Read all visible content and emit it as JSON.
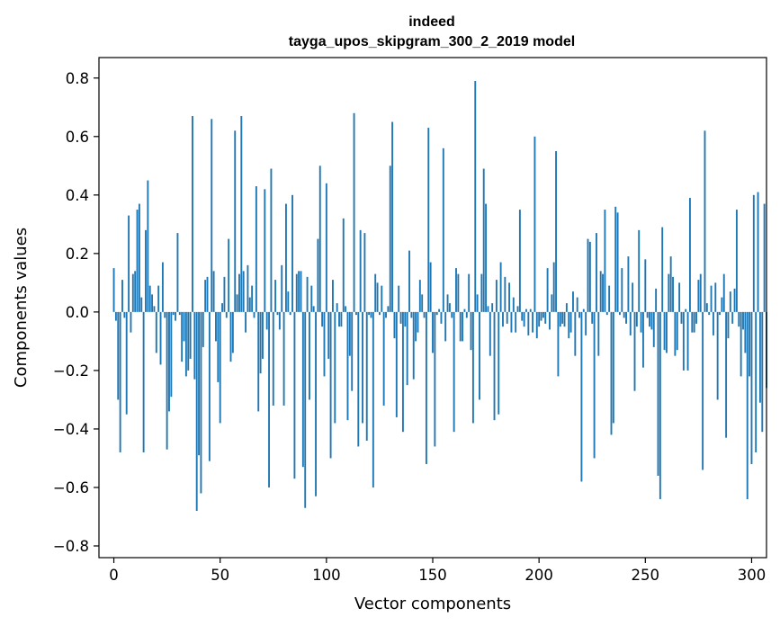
{
  "chart_data": {
    "type": "bar",
    "title": "indeed",
    "subtitle": "tayga_upos_skipgram_300_2_2019 model",
    "xlabel": "Vector components",
    "ylabel": "Components values",
    "xlim": [
      -7,
      307
    ],
    "ylim": [
      -0.84,
      0.87
    ],
    "x_ticks": [
      0,
      50,
      100,
      150,
      200,
      250,
      300
    ],
    "x_tick_labels": [
      "0",
      "50",
      "100",
      "150",
      "200",
      "250",
      "300"
    ],
    "y_ticks": [
      -0.8,
      -0.6,
      -0.4,
      -0.2,
      0.0,
      0.2,
      0.4,
      0.6,
      0.8
    ],
    "y_tick_labels": [
      "−0.8",
      "−0.6",
      "−0.4",
      "−0.2",
      "0.0",
      "0.2",
      "0.4",
      "0.6",
      "0.8"
    ],
    "bar_color": "#1f77b4",
    "grid": false,
    "values": [
      0.15,
      -0.03,
      -0.3,
      -0.48,
      0.11,
      -0.02,
      -0.35,
      0.33,
      -0.07,
      0.13,
      0.14,
      0.35,
      0.37,
      0.05,
      -0.48,
      0.28,
      0.45,
      0.09,
      0.06,
      0.02,
      -0.14,
      0.09,
      -0.18,
      0.17,
      -0.02,
      -0.47,
      -0.34,
      -0.29,
      -0.01,
      -0.03,
      0.27,
      -0.01,
      -0.17,
      -0.1,
      -0.22,
      -0.2,
      -0.16,
      0.67,
      -0.23,
      -0.68,
      -0.49,
      -0.62,
      -0.12,
      0.11,
      0.12,
      -0.51,
      0.66,
      0.14,
      -0.1,
      -0.24,
      -0.38,
      0.03,
      0.12,
      -0.02,
      0.25,
      -0.17,
      -0.14,
      0.62,
      0.06,
      0.13,
      0.67,
      0.14,
      -0.07,
      0.16,
      0.05,
      0.09,
      -0.02,
      0.43,
      -0.34,
      -0.21,
      -0.16,
      0.42,
      -0.06,
      -0.6,
      0.49,
      -0.32,
      0.11,
      -0.01,
      -0.06,
      0.16,
      -0.32,
      0.37,
      0.07,
      -0.01,
      0.4,
      -0.57,
      0.13,
      0.14,
      0.14,
      -0.53,
      -0.67,
      0.12,
      -0.3,
      0.09,
      0.02,
      -0.63,
      0.25,
      0.5,
      -0.05,
      -0.22,
      0.44,
      -0.16,
      -0.5,
      0.11,
      -0.38,
      0.03,
      -0.05,
      -0.05,
      0.32,
      0.02,
      -0.37,
      -0.15,
      -0.27,
      0.68,
      -0.01,
      -0.46,
      0.28,
      -0.38,
      0.27,
      -0.44,
      -0.01,
      -0.02,
      -0.6,
      0.13,
      0.1,
      -0.01,
      0.09,
      -0.32,
      -0.02,
      0.02,
      0.5,
      0.65,
      -0.09,
      -0.36,
      0.09,
      -0.04,
      -0.41,
      -0.05,
      -0.25,
      0.21,
      -0.02,
      -0.23,
      -0.1,
      -0.07,
      0.11,
      0.06,
      -0.02,
      -0.52,
      0.63,
      0.17,
      -0.14,
      -0.46,
      -0.01,
      0.01,
      -0.04,
      0.56,
      -0.1,
      0.06,
      0.03,
      -0.02,
      -0.41,
      0.15,
      0.13,
      -0.1,
      -0.1,
      0.01,
      -0.02,
      0.13,
      -0.13,
      -0.38,
      0.79,
      0.06,
      -0.3,
      0.13,
      0.49,
      0.37,
      0.02,
      -0.15,
      0.03,
      -0.37,
      0.11,
      -0.35,
      0.17,
      -0.05,
      0.12,
      -0.04,
      0.1,
      -0.07,
      0.05,
      -0.07,
      0.02,
      0.35,
      -0.03,
      -0.05,
      0.01,
      -0.08,
      0.01,
      -0.07,
      0.6,
      -0.09,
      -0.05,
      -0.03,
      -0.02,
      -0.04,
      0.15,
      -0.06,
      0.06,
      0.17,
      0.55,
      -0.22,
      -0.05,
      -0.04,
      -0.05,
      0.03,
      -0.09,
      -0.07,
      0.07,
      -0.15,
      0.05,
      -0.02,
      -0.58,
      0.01,
      -0.08,
      0.25,
      0.24,
      -0.04,
      -0.5,
      0.27,
      -0.15,
      0.14,
      0.13,
      0.35,
      -0.01,
      0.09,
      -0.42,
      -0.38,
      0.36,
      0.34,
      -0.01,
      0.15,
      -0.02,
      -0.04,
      0.19,
      -0.08,
      0.1,
      -0.27,
      -0.05,
      0.28,
      -0.07,
      -0.19,
      0.18,
      -0.02,
      -0.05,
      -0.06,
      -0.12,
      0.08,
      -0.56,
      -0.64,
      0.29,
      -0.13,
      -0.14,
      0.13,
      0.19,
      0.12,
      -0.15,
      -0.13,
      0.1,
      -0.04,
      -0.2,
      0.01,
      -0.2,
      0.39,
      -0.07,
      -0.07,
      -0.04,
      0.11,
      0.13,
      -0.54,
      0.62,
      0.03,
      -0.01,
      0.09,
      -0.08,
      0.1,
      -0.3,
      -0.01,
      0.05,
      0.13,
      -0.43,
      -0.09,
      0.07,
      -0.04,
      0.08,
      0.35,
      -0.05,
      -0.22,
      -0.06,
      -0.14,
      -0.64,
      -0.22,
      -0.52,
      0.4,
      -0.48,
      0.41,
      -0.31,
      -0.41,
      0.37,
      -0.26
    ]
  }
}
